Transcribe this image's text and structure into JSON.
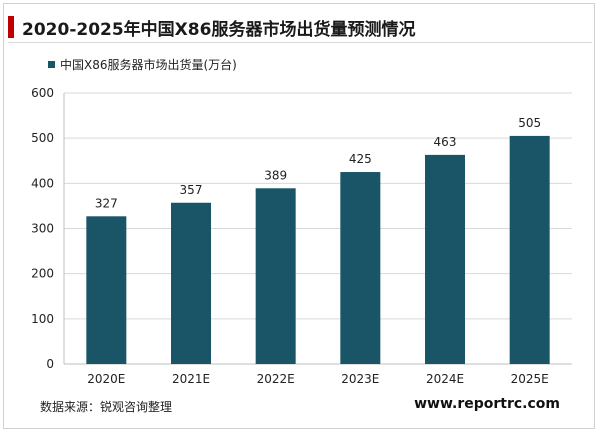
{
  "title": "2020-2025年中国X86服务器市场出货量预测情况",
  "source": "数据来源：锐观咨询整理",
  "website": "www.reportrc.com",
  "colors": {
    "accent": "#c00000",
    "bar": "#1a5467"
  },
  "chart_data": {
    "type": "bar",
    "categories": [
      "2020E",
      "2021E",
      "2022E",
      "2023E",
      "2024E",
      "2025E"
    ],
    "series": [
      {
        "name": "中国X86服务器市场出货量(万台)",
        "values": [
          327,
          357,
          389,
          425,
          463,
          505
        ]
      }
    ],
    "ylim": [
      0,
      600
    ],
    "yticks": [
      0,
      100,
      200,
      300,
      400,
      500,
      600
    ],
    "grid": true,
    "legend": "top-left",
    "data_labels": true
  }
}
